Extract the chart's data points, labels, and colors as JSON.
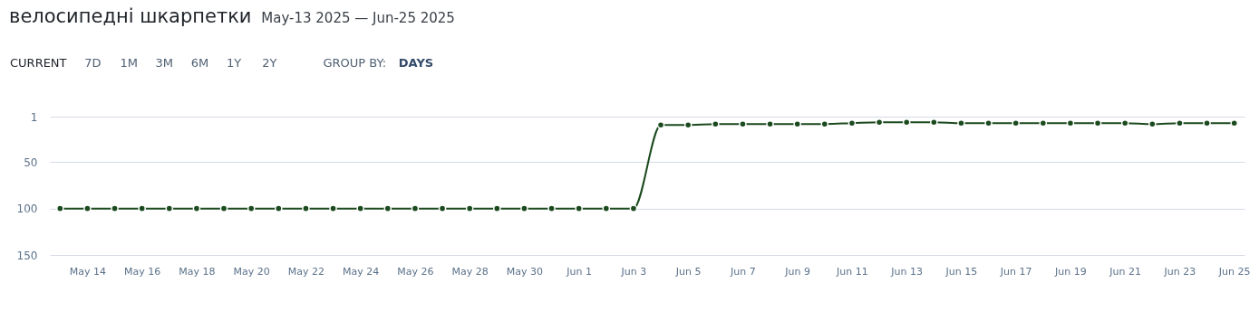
{
  "chart_data": {
    "type": "line",
    "title": "велосипедні шкарпетки",
    "subtitle": "May-13 2025 — Jun-25 2025",
    "annotations": [
      "CURRENT",
      "7D",
      "1M",
      "3M",
      "6M",
      "1Y",
      "2Y",
      "GROUP BY:",
      "DAYS"
    ],
    "x": [
      "2025-05-13",
      "2025-05-14",
      "2025-05-15",
      "2025-05-16",
      "2025-05-17",
      "2025-05-18",
      "2025-05-19",
      "2025-05-20",
      "2025-05-21",
      "2025-05-22",
      "2025-05-23",
      "2025-05-24",
      "2025-05-25",
      "2025-05-26",
      "2025-05-27",
      "2025-05-28",
      "2025-05-29",
      "2025-05-30",
      "2025-05-31",
      "2025-06-01",
      "2025-06-02",
      "2025-06-03",
      "2025-06-04",
      "2025-06-05",
      "2025-06-06",
      "2025-06-07",
      "2025-06-08",
      "2025-06-09",
      "2025-06-10",
      "2025-06-11",
      "2025-06-12",
      "2025-06-13",
      "2025-06-14",
      "2025-06-15",
      "2025-06-16",
      "2025-06-17",
      "2025-06-18",
      "2025-06-19",
      "2025-06-20",
      "2025-06-21",
      "2025-06-22",
      "2025-06-23",
      "2025-06-24",
      "2025-06-25"
    ],
    "series": [
      {
        "color": "#1b4a1e",
        "values": [
          100,
          100,
          100,
          100,
          100,
          100,
          100,
          100,
          100,
          100,
          100,
          100,
          100,
          100,
          100,
          100,
          100,
          100,
          100,
          100,
          100,
          100,
          10,
          10,
          9,
          9,
          9,
          9,
          9,
          8,
          7,
          7,
          7,
          8,
          8,
          8,
          8,
          8,
          8,
          8,
          9,
          8,
          8,
          8
        ]
      }
    ],
    "xlim": [
      "2025-05-12T15:00",
      "2025-06-25T09:00"
    ],
    "xticks": [
      {
        "value": "2025-05-14",
        "label": "May 14"
      },
      {
        "value": "2025-05-16",
        "label": "May 16"
      },
      {
        "value": "2025-05-18",
        "label": "May 18"
      },
      {
        "value": "2025-05-20",
        "label": "May 20"
      },
      {
        "value": "2025-05-22",
        "label": "May 22"
      },
      {
        "value": "2025-05-24",
        "label": "May 24"
      },
      {
        "value": "2025-05-26",
        "label": "May 26"
      },
      {
        "value": "2025-05-28",
        "label": "May 28"
      },
      {
        "value": "2025-05-30",
        "label": "May 30"
      },
      {
        "value": "2025-06-01",
        "label": "Jun 1"
      },
      {
        "value": "2025-06-03",
        "label": "Jun 3"
      },
      {
        "value": "2025-06-05",
        "label": "Jun 5"
      },
      {
        "value": "2025-06-07",
        "label": "Jun 7"
      },
      {
        "value": "2025-06-09",
        "label": "Jun 9"
      },
      {
        "value": "2025-06-11",
        "label": "Jun 11"
      },
      {
        "value": "2025-06-13",
        "label": "Jun 13"
      },
      {
        "value": "2025-06-15",
        "label": "Jun 15"
      },
      {
        "value": "2025-06-17",
        "label": "Jun 17"
      },
      {
        "value": "2025-06-19",
        "label": "Jun 19"
      },
      {
        "value": "2025-06-21",
        "label": "Jun 21"
      },
      {
        "value": "2025-06-23",
        "label": "Jun 23"
      },
      {
        "value": "2025-06-25",
        "label": "Jun 25"
      }
    ],
    "ylim": [
      150,
      1
    ],
    "yticks": [
      1,
      50,
      100,
      150
    ],
    "grid": "y",
    "marker": "circle",
    "line_style": "solid"
  }
}
